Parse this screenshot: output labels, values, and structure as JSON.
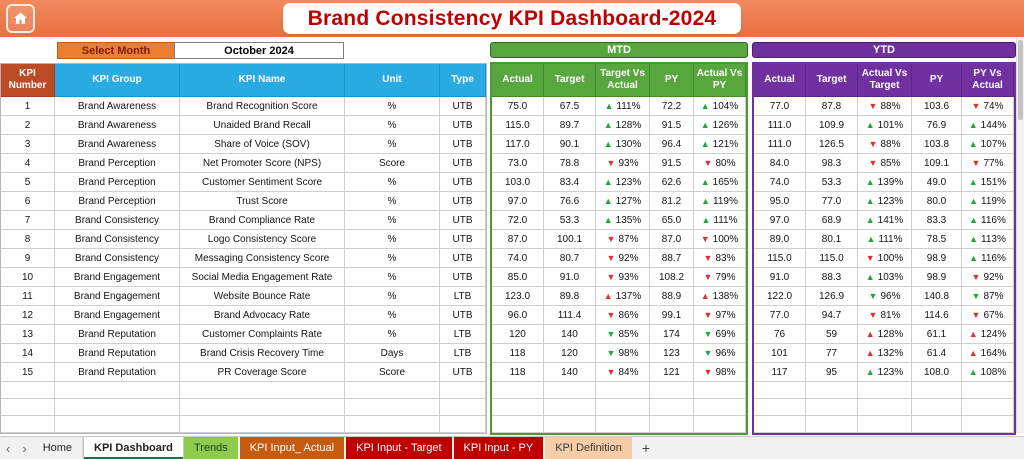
{
  "header": {
    "title": "Brand Consistency KPI Dashboard-2024"
  },
  "controls": {
    "select_month_label": "Select Month",
    "selected_month": "October 2024"
  },
  "sections": {
    "mtd_label": "MTD",
    "ytd_label": "YTD"
  },
  "nav": {
    "left": "‹",
    "right": "›"
  },
  "icons": {
    "up": "▲",
    "down": "▼"
  },
  "colors": {
    "topbar_orange": "#E9713F",
    "title_red": "#C00000",
    "header_blue": "#29ABE2",
    "header_red": "#BC4A26",
    "mtd_green": "#58A63E",
    "ytd_purple": "#7030A0",
    "trend_good": "#1FA83C",
    "trend_bad": "#E52E2E"
  },
  "table": {
    "left_headers": [
      "KPI Number",
      "KPI Group",
      "KPI Name",
      "Unit",
      "Type"
    ],
    "mtd_headers": [
      "Actual",
      "Target",
      "Target Vs Actual",
      "PY",
      "Actual Vs PY"
    ],
    "ytd_headers": [
      "Actual",
      "Target",
      "Actual Vs Target",
      "PY",
      "PY Vs Actual"
    ],
    "rows": [
      {
        "num": "1",
        "group": "Brand Awareness",
        "name": "Brand Recognition Score",
        "unit": "%",
        "type": "UTB",
        "mtd": [
          "75.0",
          "67.5",
          {
            "dir": "up",
            "tone": "good",
            "val": "111%"
          },
          "72.2",
          {
            "dir": "up",
            "tone": "good",
            "val": "104%"
          }
        ],
        "ytd": [
          "77.0",
          "87.8",
          {
            "dir": "down",
            "tone": "bad",
            "val": "88%"
          },
          "103.6",
          {
            "dir": "down",
            "tone": "bad",
            "val": "74%"
          }
        ]
      },
      {
        "num": "2",
        "group": "Brand Awareness",
        "name": "Unaided Brand Recall",
        "unit": "%",
        "type": "UTB",
        "mtd": [
          "115.0",
          "89.7",
          {
            "dir": "up",
            "tone": "good",
            "val": "128%"
          },
          "91.5",
          {
            "dir": "up",
            "tone": "good",
            "val": "126%"
          }
        ],
        "ytd": [
          "111.0",
          "109.9",
          {
            "dir": "up",
            "tone": "good",
            "val": "101%"
          },
          "76.9",
          {
            "dir": "up",
            "tone": "good",
            "val": "144%"
          }
        ]
      },
      {
        "num": "3",
        "group": "Brand Awareness",
        "name": "Share of Voice (SOV)",
        "unit": "%",
        "type": "UTB",
        "mtd": [
          "117.0",
          "90.1",
          {
            "dir": "up",
            "tone": "good",
            "val": "130%"
          },
          "96.4",
          {
            "dir": "up",
            "tone": "good",
            "val": "121%"
          }
        ],
        "ytd": [
          "111.0",
          "126.5",
          {
            "dir": "down",
            "tone": "bad",
            "val": "88%"
          },
          "103.8",
          {
            "dir": "up",
            "tone": "good",
            "val": "107%"
          }
        ]
      },
      {
        "num": "4",
        "group": "Brand Perception",
        "name": "Net Promoter Score (NPS)",
        "unit": "Score",
        "type": "UTB",
        "mtd": [
          "73.0",
          "78.8",
          {
            "dir": "down",
            "tone": "bad",
            "val": "93%"
          },
          "91.5",
          {
            "dir": "down",
            "tone": "bad",
            "val": "80%"
          }
        ],
        "ytd": [
          "84.0",
          "98.3",
          {
            "dir": "down",
            "tone": "bad",
            "val": "85%"
          },
          "109.1",
          {
            "dir": "down",
            "tone": "bad",
            "val": "77%"
          }
        ]
      },
      {
        "num": "5",
        "group": "Brand Perception",
        "name": "Customer Sentiment Score",
        "unit": "%",
        "type": "UTB",
        "mtd": [
          "103.0",
          "83.4",
          {
            "dir": "up",
            "tone": "good",
            "val": "123%"
          },
          "62.6",
          {
            "dir": "up",
            "tone": "good",
            "val": "165%"
          }
        ],
        "ytd": [
          "74.0",
          "53.3",
          {
            "dir": "up",
            "tone": "good",
            "val": "139%"
          },
          "49.0",
          {
            "dir": "up",
            "tone": "good",
            "val": "151%"
          }
        ]
      },
      {
        "num": "6",
        "group": "Brand Perception",
        "name": "Trust Score",
        "unit": "%",
        "type": "UTB",
        "mtd": [
          "97.0",
          "76.6",
          {
            "dir": "up",
            "tone": "good",
            "val": "127%"
          },
          "81.2",
          {
            "dir": "up",
            "tone": "good",
            "val": "119%"
          }
        ],
        "ytd": [
          "95.0",
          "77.0",
          {
            "dir": "up",
            "tone": "good",
            "val": "123%"
          },
          "80.0",
          {
            "dir": "up",
            "tone": "good",
            "val": "119%"
          }
        ]
      },
      {
        "num": "7",
        "group": "Brand Consistency",
        "name": "Brand Compliance Rate",
        "unit": "%",
        "type": "UTB",
        "mtd": [
          "72.0",
          "53.3",
          {
            "dir": "up",
            "tone": "good",
            "val": "135%"
          },
          "65.0",
          {
            "dir": "up",
            "tone": "good",
            "val": "111%"
          }
        ],
        "ytd": [
          "97.0",
          "68.9",
          {
            "dir": "up",
            "tone": "good",
            "val": "141%"
          },
          "83.3",
          {
            "dir": "up",
            "tone": "good",
            "val": "116%"
          }
        ]
      },
      {
        "num": "8",
        "group": "Brand Consistency",
        "name": "Logo Consistency Score",
        "unit": "%",
        "type": "UTB",
        "mtd": [
          "87.0",
          "100.1",
          {
            "dir": "down",
            "tone": "bad",
            "val": "87%"
          },
          "87.0",
          {
            "dir": "down",
            "tone": "bad",
            "val": "100%"
          }
        ],
        "ytd": [
          "89.0",
          "80.1",
          {
            "dir": "up",
            "tone": "good",
            "val": "111%"
          },
          "78.5",
          {
            "dir": "up",
            "tone": "good",
            "val": "113%"
          }
        ]
      },
      {
        "num": "9",
        "group": "Brand Consistency",
        "name": "Messaging Consistency Score",
        "unit": "%",
        "type": "UTB",
        "mtd": [
          "74.0",
          "80.7",
          {
            "dir": "down",
            "tone": "bad",
            "val": "92%"
          },
          "88.7",
          {
            "dir": "down",
            "tone": "bad",
            "val": "83%"
          }
        ],
        "ytd": [
          "115.0",
          "115.0",
          {
            "dir": "down",
            "tone": "bad",
            "val": "100%"
          },
          "98.9",
          {
            "dir": "up",
            "tone": "good",
            "val": "116%"
          }
        ]
      },
      {
        "num": "10",
        "group": "Brand Engagement",
        "name": "Social Media Engagement Rate",
        "unit": "%",
        "type": "UTB",
        "mtd": [
          "85.0",
          "91.0",
          {
            "dir": "down",
            "tone": "bad",
            "val": "93%"
          },
          "108.2",
          {
            "dir": "down",
            "tone": "bad",
            "val": "79%"
          }
        ],
        "ytd": [
          "91.0",
          "88.3",
          {
            "dir": "up",
            "tone": "good",
            "val": "103%"
          },
          "98.9",
          {
            "dir": "down",
            "tone": "bad",
            "val": "92%"
          }
        ]
      },
      {
        "num": "11",
        "group": "Brand Engagement",
        "name": "Website Bounce Rate",
        "unit": "%",
        "type": "LTB",
        "mtd": [
          "123.0",
          "89.8",
          {
            "dir": "up",
            "tone": "bad",
            "val": "137%"
          },
          "88.9",
          {
            "dir": "up",
            "tone": "bad",
            "val": "138%"
          }
        ],
        "ytd": [
          "122.0",
          "126.9",
          {
            "dir": "down",
            "tone": "good",
            "val": "96%"
          },
          "140.8",
          {
            "dir": "down",
            "tone": "good",
            "val": "87%"
          }
        ]
      },
      {
        "num": "12",
        "group": "Brand Engagement",
        "name": "Brand Advocacy Rate",
        "unit": "%",
        "type": "UTB",
        "mtd": [
          "96.0",
          "111.4",
          {
            "dir": "down",
            "tone": "bad",
            "val": "86%"
          },
          "99.1",
          {
            "dir": "down",
            "tone": "bad",
            "val": "97%"
          }
        ],
        "ytd": [
          "77.0",
          "94.7",
          {
            "dir": "down",
            "tone": "bad",
            "val": "81%"
          },
          "114.6",
          {
            "dir": "down",
            "tone": "bad",
            "val": "67%"
          }
        ]
      },
      {
        "num": "13",
        "group": "Brand Reputation",
        "name": "Customer Complaints Rate",
        "unit": "%",
        "type": "LTB",
        "mtd": [
          "120",
          "140",
          {
            "dir": "down",
            "tone": "good",
            "val": "85%"
          },
          "174",
          {
            "dir": "down",
            "tone": "good",
            "val": "69%"
          }
        ],
        "ytd": [
          "76",
          "59",
          {
            "dir": "up",
            "tone": "bad",
            "val": "128%"
          },
          "61.1",
          {
            "dir": "up",
            "tone": "bad",
            "val": "124%"
          }
        ]
      },
      {
        "num": "14",
        "group": "Brand Reputation",
        "name": "Brand Crisis Recovery Time",
        "unit": "Days",
        "type": "LTB",
        "mtd": [
          "118",
          "120",
          {
            "dir": "down",
            "tone": "good",
            "val": "98%"
          },
          "123",
          {
            "dir": "down",
            "tone": "good",
            "val": "96%"
          }
        ],
        "ytd": [
          "101",
          "77",
          {
            "dir": "up",
            "tone": "bad",
            "val": "132%"
          },
          "61.4",
          {
            "dir": "up",
            "tone": "bad",
            "val": "164%"
          }
        ]
      },
      {
        "num": "15",
        "group": "Brand Reputation",
        "name": "PR Coverage Score",
        "unit": "Score",
        "type": "UTB",
        "mtd": [
          "118",
          "140",
          {
            "dir": "down",
            "tone": "bad",
            "val": "84%"
          },
          "121",
          {
            "dir": "down",
            "tone": "bad",
            "val": "98%"
          }
        ],
        "ytd": [
          "117",
          "95",
          {
            "dir": "up",
            "tone": "good",
            "val": "123%"
          },
          "108.0",
          {
            "dir": "up",
            "tone": "good",
            "val": "108%"
          }
        ]
      }
    ]
  },
  "tabs": [
    {
      "id": "home",
      "label": "Home",
      "style": "plain"
    },
    {
      "id": "kpi-dashboard",
      "label": "KPI Dashboard",
      "style": "active"
    },
    {
      "id": "trends",
      "label": "Trends",
      "style": "green"
    },
    {
      "id": "kpi-input-actual",
      "label": "KPI Input_ Actual",
      "style": "orange"
    },
    {
      "id": "kpi-input-target",
      "label": "KPI Input - Target",
      "style": "red"
    },
    {
      "id": "kpi-input-py",
      "label": "KPI Input - PY",
      "style": "red"
    },
    {
      "id": "kpi-definition",
      "label": "KPI Definition",
      "style": "peach"
    },
    {
      "id": "add-sheet",
      "label": "+",
      "style": "plus"
    }
  ]
}
